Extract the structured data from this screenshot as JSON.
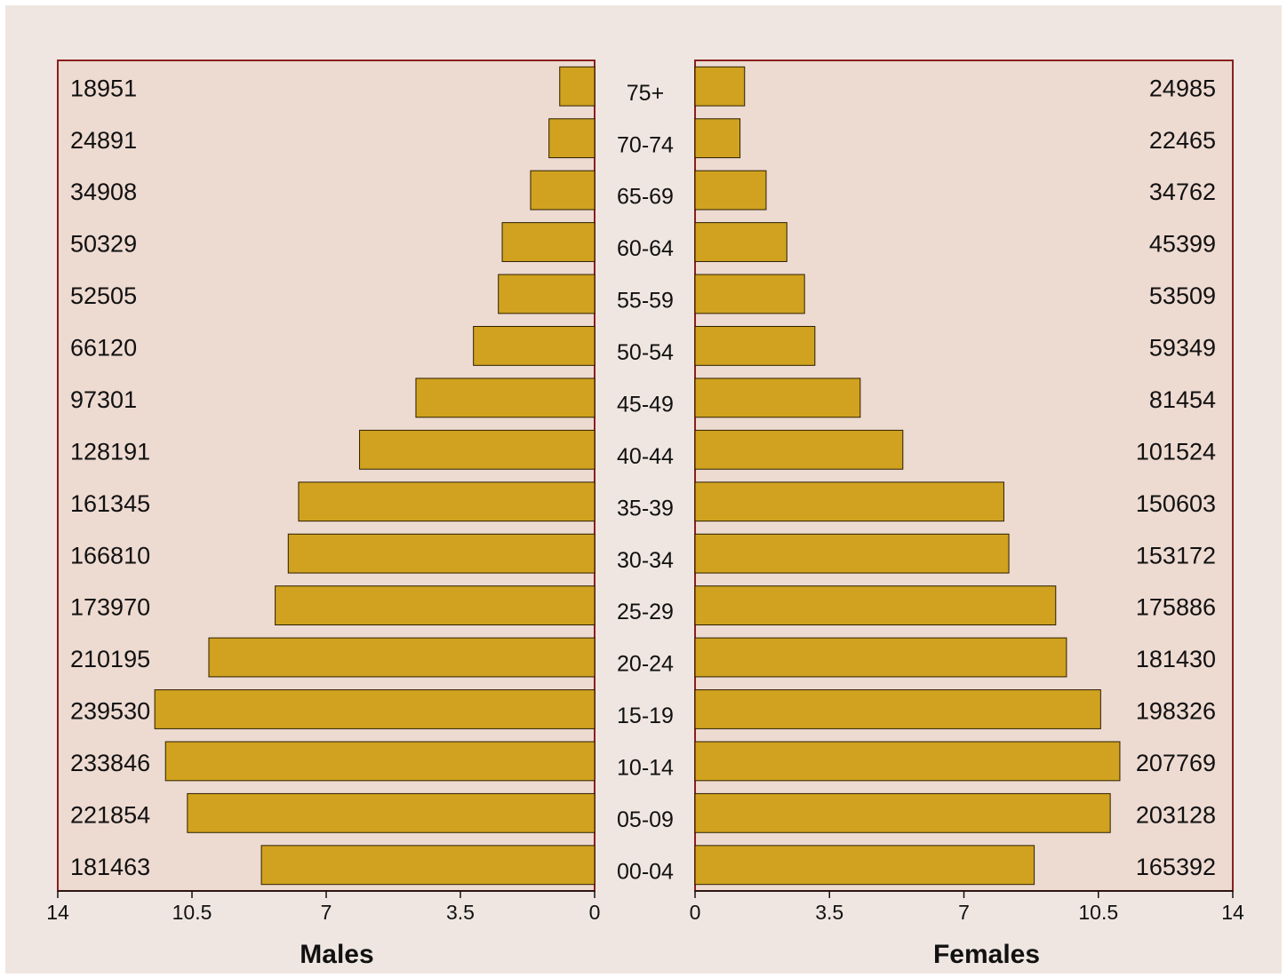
{
  "chart_data": {
    "type": "bar",
    "orientation": "horizontal",
    "layout": "population-pyramid",
    "categories": [
      "75+",
      "70-74",
      "65-69",
      "60-64",
      "55-59",
      "50-54",
      "45-49",
      "40-44",
      "35-39",
      "30-34",
      "25-29",
      "20-24",
      "15-19",
      "10-14",
      "05-09",
      "00-04"
    ],
    "series": [
      {
        "name": "Males",
        "counts": [
          18951,
          24891,
          34908,
          50329,
          52505,
          66120,
          97301,
          128191,
          161345,
          166810,
          173970,
          210195,
          239530,
          233846,
          221854,
          181463
        ],
        "values": [
          0.91,
          1.19,
          1.67,
          2.41,
          2.51,
          3.16,
          4.66,
          6.13,
          7.72,
          7.99,
          8.33,
          10.06,
          11.47,
          11.19,
          10.62,
          8.69
        ]
      },
      {
        "name": "Females",
        "counts": [
          24985,
          22465,
          34762,
          45399,
          53509,
          59349,
          81454,
          101524,
          150603,
          153172,
          175886,
          181430,
          198326,
          207769,
          203128,
          165392
        ],
        "values": [
          1.29,
          1.17,
          1.85,
          2.39,
          2.85,
          3.12,
          4.3,
          5.41,
          8.04,
          8.17,
          9.39,
          9.67,
          10.56,
          11.06,
          10.81,
          8.83
        ]
      }
    ],
    "xlim": [
      0,
      14
    ],
    "xticks": [
      "14",
      "10.5",
      "7",
      "3.5",
      "0"
    ],
    "xticks_right": [
      "0",
      "3.5",
      "7",
      "10.5",
      "14"
    ],
    "xlabel_left": "Males",
    "xlabel_right": "Females",
    "grid": false,
    "colors": {
      "bar": "#d1a21f",
      "bar_edge": "#2a1f00",
      "panel": "#eddad1",
      "panel_border": "#8a1f1f",
      "background": "#efe6e1"
    }
  }
}
